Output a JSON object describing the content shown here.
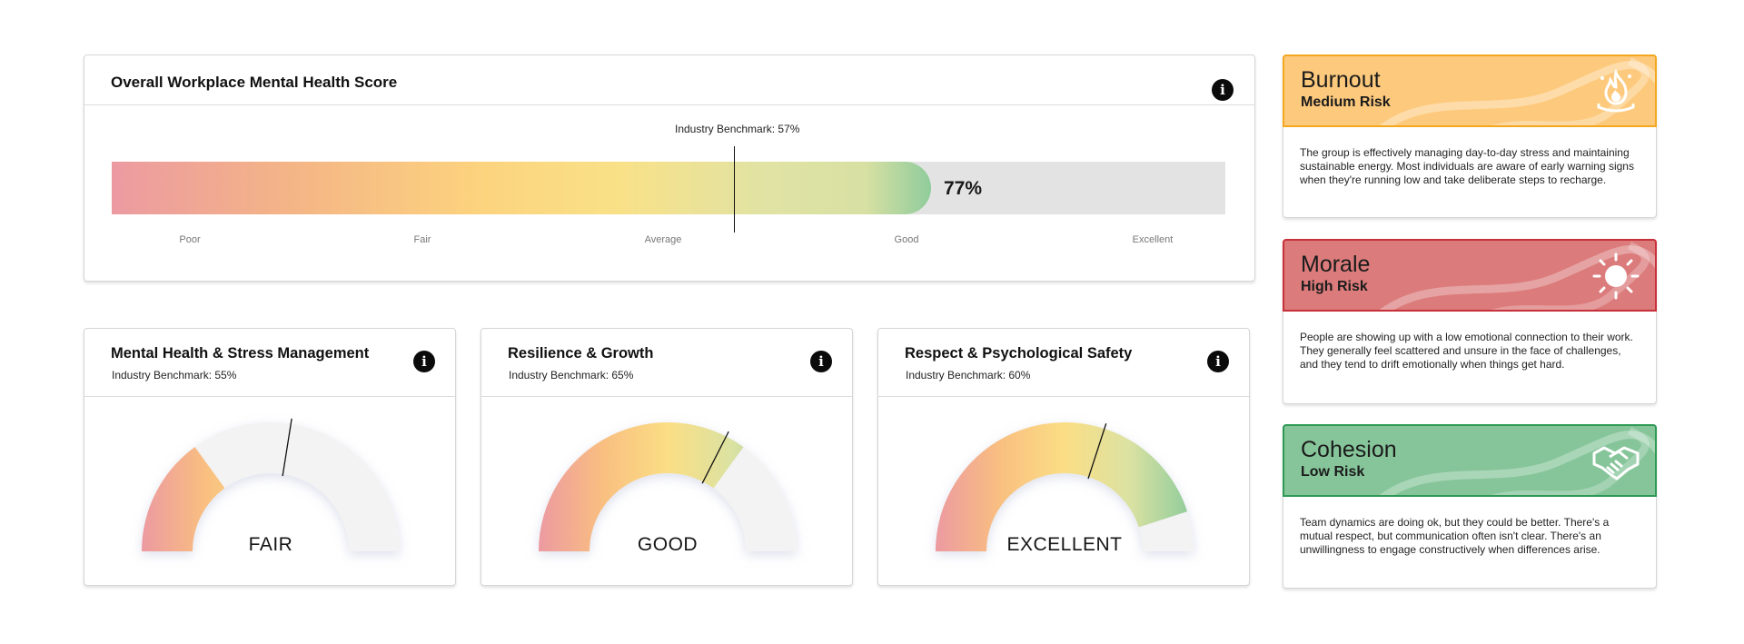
{
  "overall": {
    "title": "Overall Workplace Mental Health Score",
    "benchmark_label": "Industry Benchmark: 57%",
    "benchmark_value": 57,
    "score_value": 77,
    "score_label": "77%",
    "scale": [
      "Poor",
      "Fair",
      "Average",
      "Good",
      "Excellent"
    ],
    "info_icon": "info-icon"
  },
  "gauges": [
    {
      "title": "Mental Health & Stress Management",
      "benchmark_label": "Industry Benchmark: 55%",
      "benchmark_value": 55,
      "fill_fraction": 0.3,
      "rating": "FAIR"
    },
    {
      "title": "Resilience & Growth",
      "benchmark_label": "Industry Benchmark: 65%",
      "benchmark_value": 65,
      "fill_fraction": 0.7,
      "rating": "GOOD"
    },
    {
      "title": "Respect & Psychological Safety",
      "benchmark_label": "Industry Benchmark: 60%",
      "benchmark_value": 60,
      "fill_fraction": 0.9,
      "rating": "EXCELLENT"
    }
  ],
  "risks": [
    {
      "title": "Burnout",
      "level": "Medium Risk",
      "color": "#fdc97c",
      "border": "#f3a820",
      "icon": "flame-icon",
      "description": "The group is effectively managing day-to-day stress and maintaining sustainable energy. Most individuals are aware of early warning signs when they're running low and take deliberate steps to recharge."
    },
    {
      "title": "Morale",
      "level": "High Risk",
      "color": "#db7b7b",
      "border": "#c8303a",
      "icon": "sun-icon",
      "description": "People are showing up with a low emotional connection to their work. They generally feel scattered and unsure in the face of challenges, and they tend to drift emotionally when things get hard."
    },
    {
      "title": "Cohesion",
      "level": "Low Risk",
      "color": "#86c59a",
      "border": "#2e9a55",
      "icon": "handshake-icon",
      "description": "Team dynamics are doing ok, but they could be better. There's a mutual respect, but communication often isn't clear. There's an unwillingness to engage constructively when differences arise."
    }
  ]
}
